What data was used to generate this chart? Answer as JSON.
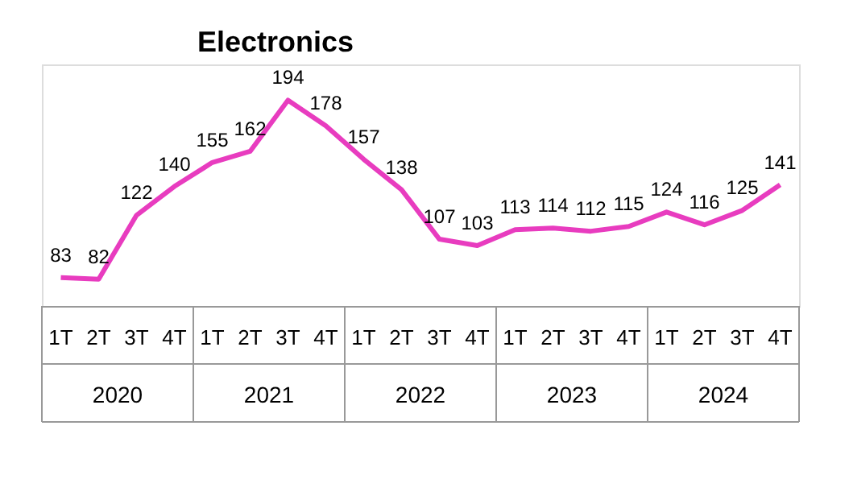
{
  "chart_data": {
    "type": "line",
    "title": "Electronics",
    "categories": [
      "1T",
      "2T",
      "3T",
      "4T",
      "1T",
      "2T",
      "3T",
      "4T",
      "1T",
      "2T",
      "3T",
      "4T",
      "1T",
      "2T",
      "3T",
      "4T",
      "1T",
      "2T",
      "3T",
      "4T"
    ],
    "series": [
      {
        "color": "#e83cbf",
        "values": [
          83,
          82,
          122,
          140,
          155,
          162,
          194,
          178,
          157,
          138,
          107,
          103,
          113,
          114,
          112,
          115,
          124,
          116,
          125,
          141
        ]
      }
    ],
    "data_labels": true,
    "marker": "none",
    "line_style": "solid",
    "annotations": [
      "2020",
      "2021",
      "2022",
      "2023",
      "2024"
    ]
  }
}
